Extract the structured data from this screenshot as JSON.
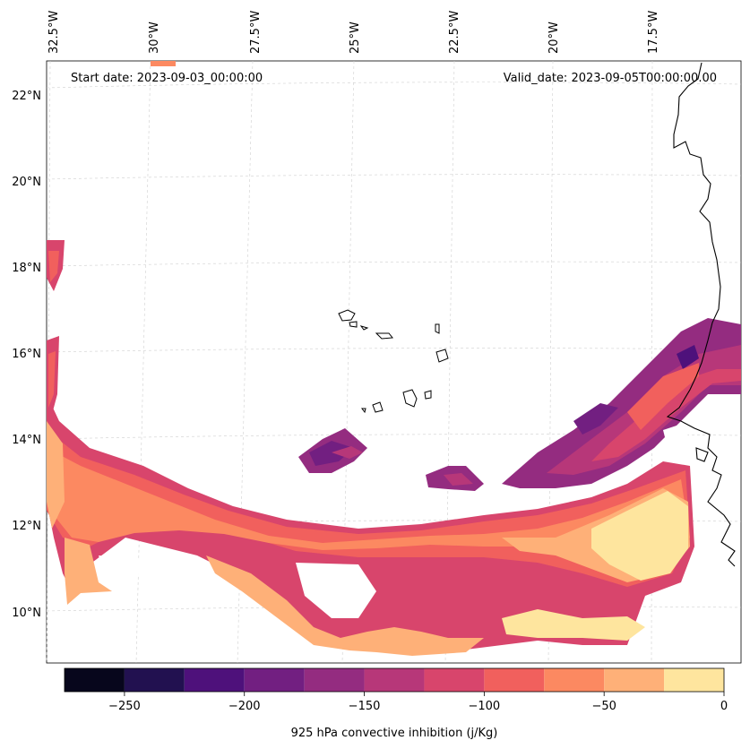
{
  "map": {
    "start_label": "Start date: 2023-09-03_00:00:00",
    "valid_label": "Valid_date: 2023-09-05T00:00:00.00",
    "lon_labels": [
      "32.5°W",
      "30°W",
      "27.5°W",
      "25°W",
      "22.5°W",
      "20°W",
      "17.5°W"
    ],
    "lat_labels": [
      "22°N",
      "20°N",
      "18°N",
      "16°N",
      "14°N",
      "12°N",
      "10°N"
    ],
    "gridlines": "dashed light gray"
  },
  "colorbar": {
    "label": "925 hPa convective inhibition (j/Kg)",
    "ticks": [
      "−250",
      "−200",
      "−150",
      "−100",
      "−50",
      "0"
    ],
    "levels": [
      -275,
      -250,
      -225,
      -200,
      -175,
      -150,
      -125,
      -100,
      -75,
      -50,
      -25,
      0
    ],
    "colors": [
      "#07061c",
      "#221150",
      "#4e117b",
      "#721f81",
      "#942c80",
      "#b73779",
      "#d8456c",
      "#f1605d",
      "#fc8961",
      "#feb078",
      "#fee59e"
    ]
  },
  "fields": {
    "colors": {
      "c150": "#942c80",
      "c125": "#b73779",
      "c100": "#d8456c",
      "c75": "#f1605d",
      "c50": "#fc8961",
      "c25": "#feb078",
      "c0": "#fee59e",
      "c200": "#721f81",
      "c225": "#4e117b"
    }
  }
}
